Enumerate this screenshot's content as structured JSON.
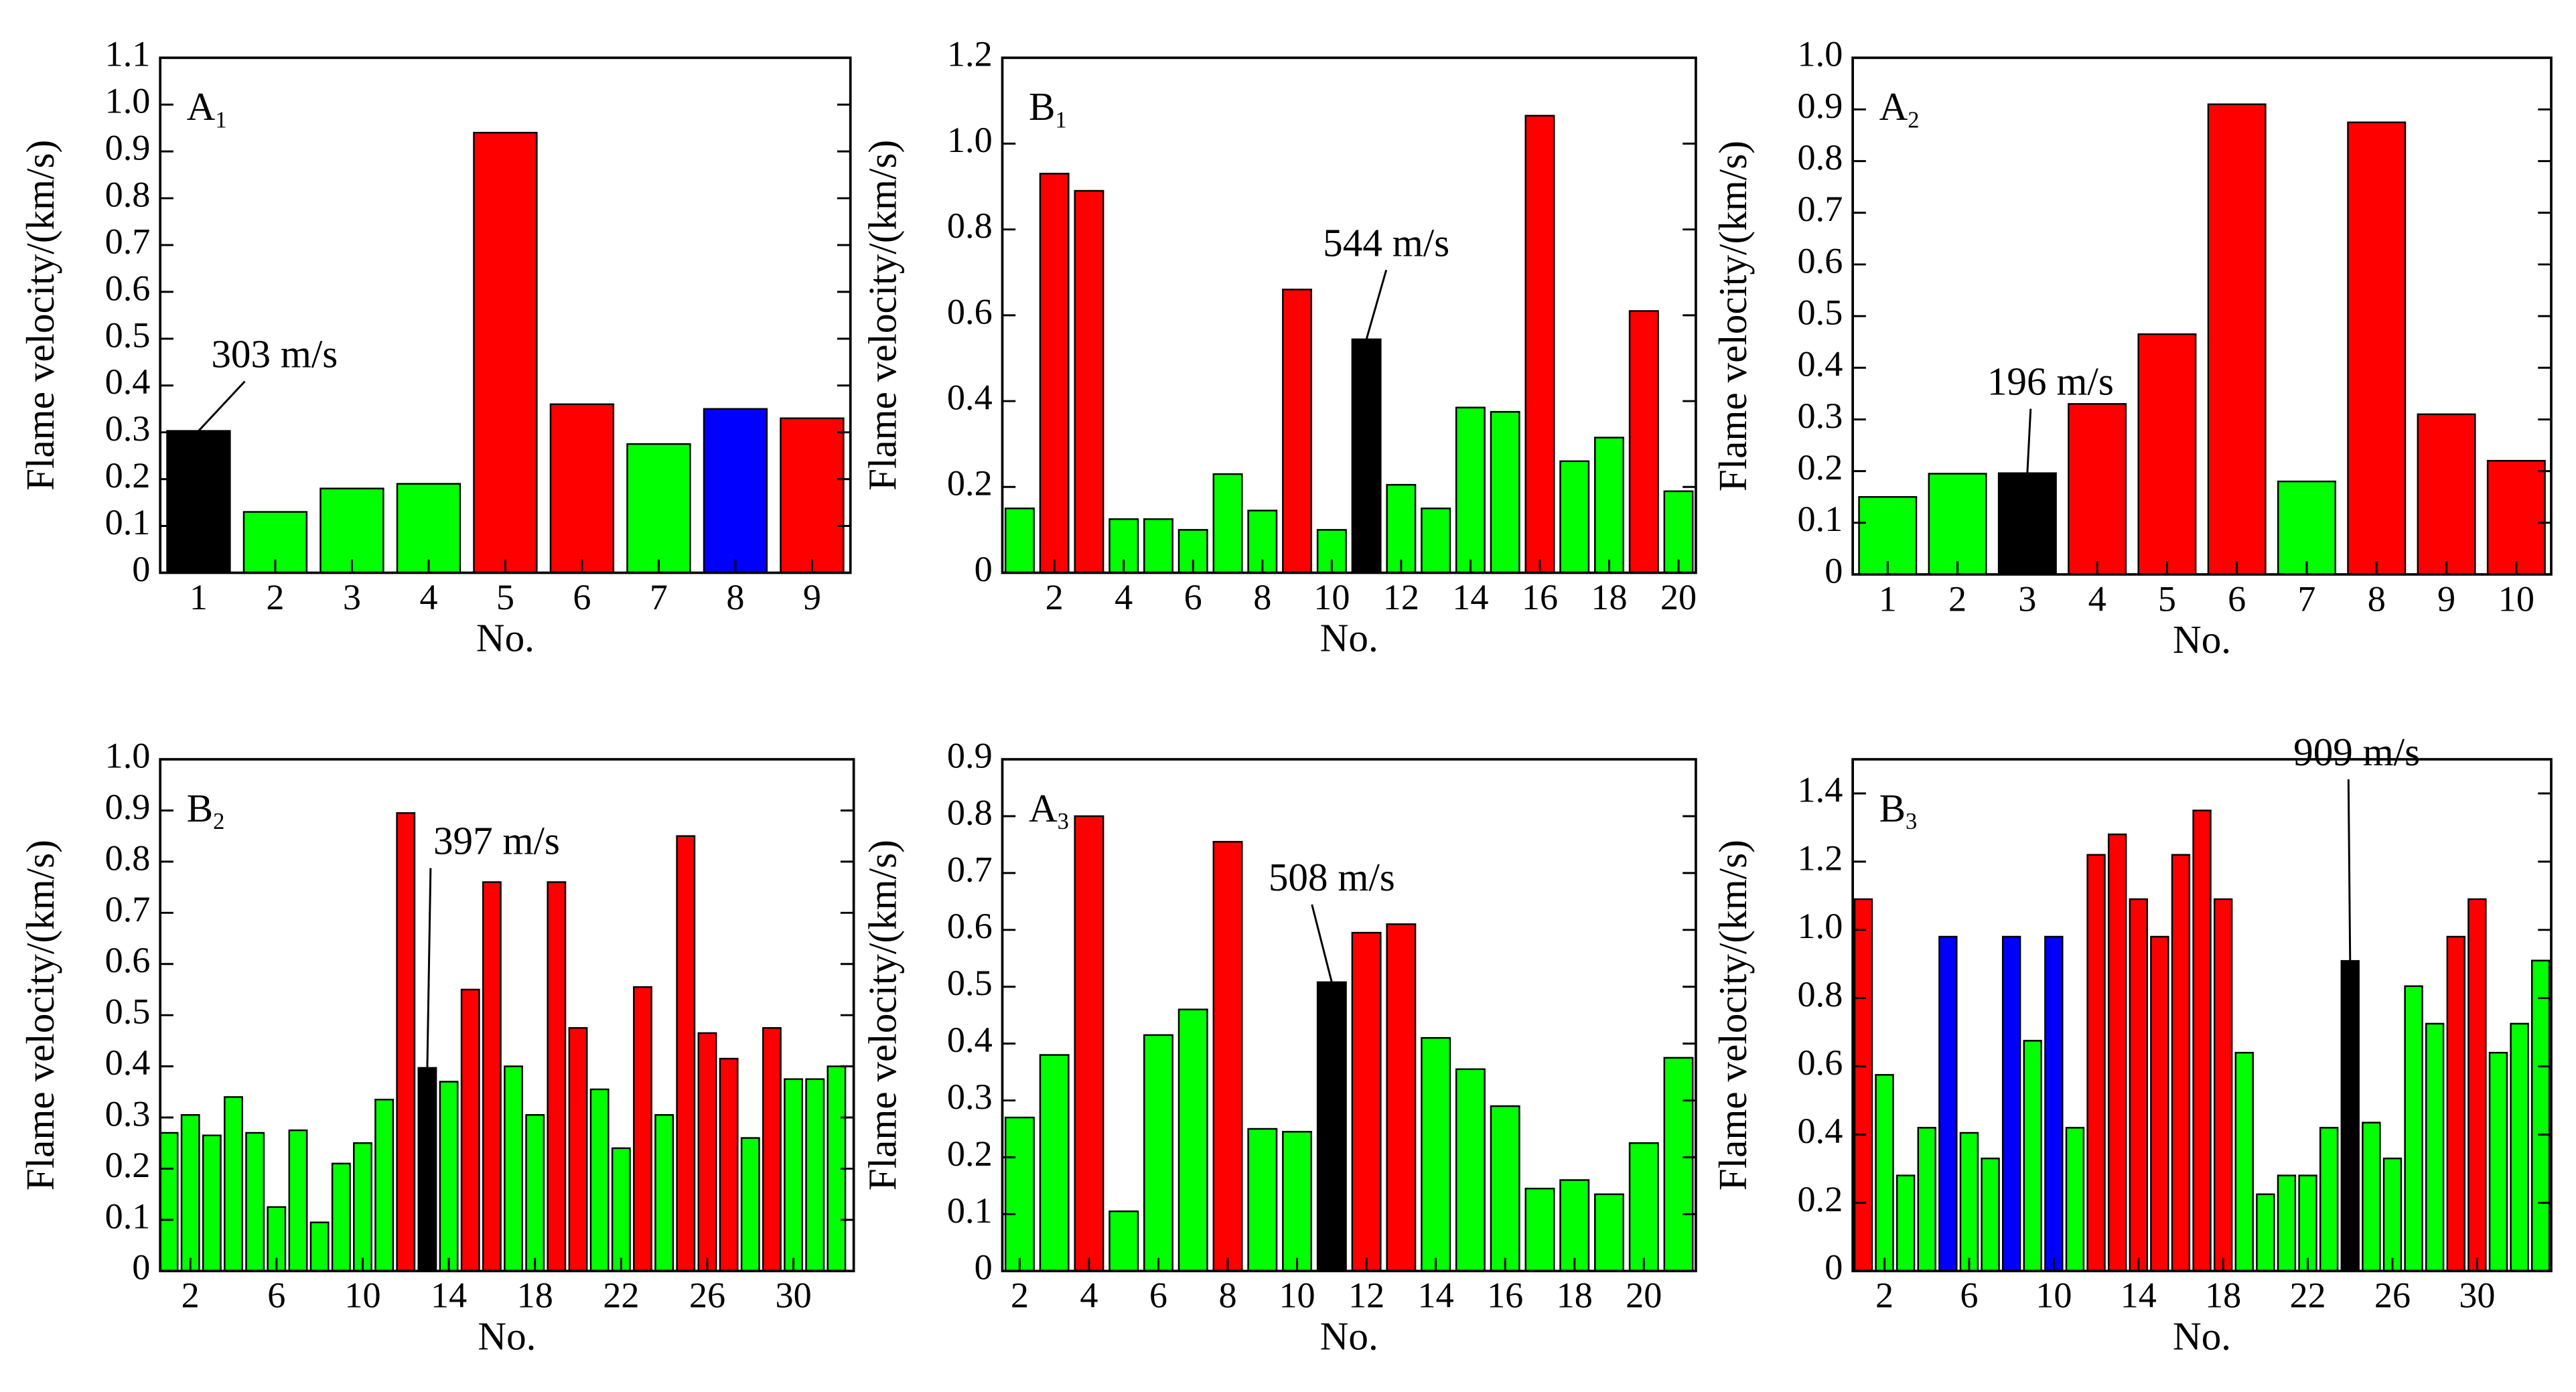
{
  "chart_data": [
    {
      "type": "bar",
      "label": "A",
      "label_sub": "1",
      "xlabel": "No.",
      "ylabel": "Flame velocity/(km/s)",
      "annotation": "303 m/s",
      "x": [
        1,
        2,
        3,
        4,
        5,
        6,
        7,
        8,
        9
      ],
      "values": [
        0.303,
        0.13,
        0.18,
        0.19,
        0.94,
        0.36,
        0.275,
        0.35,
        0.33
      ],
      "colors": [
        "#000000",
        "#00ff00",
        "#00ff00",
        "#00ff00",
        "#ff0000",
        "#ff0000",
        "#00ff00",
        "#0000ff",
        "#ff0000"
      ],
      "xlim": [
        0.5,
        9.5
      ],
      "xticks": [
        1,
        2,
        3,
        4,
        5,
        6,
        7,
        8,
        9
      ],
      "ylim": [
        0,
        1.1
      ],
      "yticks": [
        0,
        0.1,
        0.2,
        0.3,
        0.4,
        0.5,
        0.6,
        0.7,
        0.8,
        0.9,
        {
          "value": 1,
          "label": "1.0"
        },
        1.1
      ]
    },
    {
      "type": "bar",
      "label": "B",
      "label_sub": "1",
      "xlabel": "No.",
      "ylabel": "Flame velocity/(km/s)",
      "annotation": "544 m/s",
      "x": [
        1,
        2,
        3,
        4,
        5,
        6,
        7,
        8,
        9,
        10,
        11,
        12,
        13,
        14,
        15,
        16,
        17,
        18,
        19,
        20
      ],
      "values": [
        0.15,
        0.93,
        0.89,
        0.125,
        0.125,
        0.1,
        0.23,
        0.145,
        0.66,
        0.1,
        0.544,
        0.205,
        0.15,
        0.385,
        0.375,
        1.065,
        0.26,
        0.315,
        0.61,
        0.19
      ],
      "colors": [
        "#00ff00",
        "#ff0000",
        "#ff0000",
        "#00ff00",
        "#00ff00",
        "#00ff00",
        "#00ff00",
        "#00ff00",
        "#ff0000",
        "#00ff00",
        "#000000",
        "#00ff00",
        "#00ff00",
        "#00ff00",
        "#00ff00",
        "#ff0000",
        "#00ff00",
        "#00ff00",
        "#ff0000",
        "#00ff00"
      ],
      "xlim": [
        0.5,
        20.5
      ],
      "xticks": [
        2,
        4,
        6,
        8,
        10,
        12,
        14,
        16,
        18,
        20
      ],
      "ylim": [
        0,
        1.2
      ],
      "yticks": [
        0,
        0.2,
        0.4,
        0.6,
        0.8,
        {
          "value": 1,
          "label": "1.0"
        },
        1.2
      ]
    },
    {
      "type": "bar",
      "label": "A",
      "label_sub": "2",
      "xlabel": "No.",
      "ylabel": "Flame velocity/(km/s)",
      "annotation": "196 m/s",
      "x": [
        1,
        2,
        3,
        4,
        5,
        6,
        7,
        8,
        9,
        10
      ],
      "values": [
        0.15,
        0.195,
        0.196,
        0.33,
        0.465,
        0.91,
        0.18,
        0.875,
        0.31,
        0.22
      ],
      "colors": [
        "#00ff00",
        "#00ff00",
        "#000000",
        "#ff0000",
        "#ff0000",
        "#ff0000",
        "#00ff00",
        "#ff0000",
        "#ff0000",
        "#ff0000"
      ],
      "xlim": [
        0.5,
        10.5
      ],
      "xticks": [
        1,
        2,
        3,
        4,
        5,
        6,
        7,
        8,
        9,
        10
      ],
      "ylim": [
        0,
        1
      ],
      "yticks": [
        0,
        0.1,
        0.2,
        0.3,
        0.4,
        0.5,
        0.6,
        0.7,
        0.8,
        0.9,
        {
          "value": 1,
          "label": "1.0"
        }
      ]
    },
    {
      "type": "bar",
      "label": "B",
      "label_sub": "2",
      "xlabel": "No.",
      "ylabel": "Flame velocity/(km/s)",
      "annotation": "397 m/s",
      "x": [
        1,
        2,
        3,
        4,
        5,
        6,
        7,
        8,
        9,
        10,
        11,
        12,
        13,
        14,
        15,
        16,
        17,
        18,
        19,
        20,
        21,
        22,
        23,
        24,
        25,
        26,
        27,
        28,
        29,
        30,
        31,
        32
      ],
      "values": [
        0.27,
        0.305,
        0.265,
        0.34,
        0.27,
        0.125,
        0.275,
        0.095,
        0.21,
        0.25,
        0.335,
        0.895,
        0.397,
        0.37,
        0.55,
        0.76,
        0.4,
        0.305,
        0.76,
        0.475,
        0.355,
        0.24,
        0.555,
        0.305,
        0.85,
        0.465,
        0.415,
        0.26,
        0.475,
        0.375,
        0.375,
        0.4
      ],
      "colors": [
        "#00ff00",
        "#00ff00",
        "#00ff00",
        "#00ff00",
        "#00ff00",
        "#00ff00",
        "#00ff00",
        "#00ff00",
        "#00ff00",
        "#00ff00",
        "#00ff00",
        "#ff0000",
        "#000000",
        "#00ff00",
        "#ff0000",
        "#ff0000",
        "#00ff00",
        "#00ff00",
        "#ff0000",
        "#ff0000",
        "#00ff00",
        "#00ff00",
        "#ff0000",
        "#00ff00",
        "#ff0000",
        "#ff0000",
        "#ff0000",
        "#00ff00",
        "#ff0000",
        "#00ff00",
        "#00ff00",
        "#00ff00"
      ],
      "xlim": [
        0.6,
        32.8
      ],
      "xticks": [
        2,
        6,
        10,
        14,
        18,
        22,
        26,
        30
      ],
      "ylim": [
        0,
        1
      ],
      "yticks": [
        0,
        0.1,
        0.2,
        0.3,
        0.4,
        0.5,
        0.6,
        0.7,
        0.8,
        0.9,
        {
          "value": 1,
          "label": "1.0"
        }
      ]
    },
    {
      "type": "bar",
      "label": "A",
      "label_sub": "3",
      "xlabel": "No.",
      "ylabel": "Flame velocity/(km/s)",
      "annotation": "508 m/s",
      "x": [
        2,
        3,
        4,
        5,
        6,
        7,
        8,
        9,
        10,
        11,
        12,
        13,
        14,
        15,
        16,
        17,
        18,
        19,
        20,
        21
      ],
      "values": [
        0.27,
        0.38,
        0.8,
        0.105,
        0.415,
        0.46,
        0.755,
        0.25,
        0.245,
        0.508,
        0.595,
        0.61,
        0.41,
        0.355,
        0.29,
        0.145,
        0.16,
        0.135,
        0.225,
        0.375
      ],
      "colors": [
        "#00ff00",
        "#00ff00",
        "#ff0000",
        "#00ff00",
        "#00ff00",
        "#00ff00",
        "#ff0000",
        "#00ff00",
        "#00ff00",
        "#000000",
        "#ff0000",
        "#ff0000",
        "#00ff00",
        "#00ff00",
        "#00ff00",
        "#00ff00",
        "#00ff00",
        "#00ff00",
        "#00ff00",
        "#00ff00"
      ],
      "xlim": [
        1.5,
        21.5
      ],
      "xticks": [
        2,
        4,
        6,
        8,
        10,
        12,
        14,
        16,
        18,
        20
      ],
      "ylim": [
        0,
        0.9
      ],
      "yticks": [
        0,
        0.1,
        0.2,
        0.3,
        0.4,
        0.5,
        0.6,
        0.7,
        0.8,
        0.9
      ]
    },
    {
      "type": "bar",
      "label": "B",
      "label_sub": "3",
      "xlabel": "No.",
      "ylabel": "Flame velocity/(km/s)",
      "annotation": "909 m/s",
      "x": [
        1,
        2,
        3,
        4,
        5,
        6,
        7,
        8,
        9,
        10,
        11,
        12,
        13,
        14,
        15,
        16,
        17,
        18,
        19,
        20,
        21,
        22,
        23,
        24,
        25,
        26,
        27,
        28,
        29,
        30,
        31,
        32,
        33
      ],
      "values": [
        1.09,
        0.575,
        0.28,
        0.42,
        0.98,
        0.405,
        0.33,
        0.98,
        0.675,
        0.98,
        0.42,
        1.22,
        1.28,
        1.09,
        0.98,
        1.22,
        1.35,
        1.09,
        0.64,
        0.225,
        0.28,
        0.28,
        0.42,
        0.909,
        0.435,
        0.33,
        0.835,
        0.725,
        0.98,
        1.09,
        0.64,
        0.725,
        0.91
      ],
      "colors": [
        "#ff0000",
        "#00ff00",
        "#00ff00",
        "#00ff00",
        "#0000ff",
        "#00ff00",
        "#00ff00",
        "#0000ff",
        "#00ff00",
        "#0000ff",
        "#00ff00",
        "#ff0000",
        "#ff0000",
        "#ff0000",
        "#ff0000",
        "#ff0000",
        "#ff0000",
        "#ff0000",
        "#00ff00",
        "#00ff00",
        "#00ff00",
        "#00ff00",
        "#00ff00",
        "#000000",
        "#00ff00",
        "#00ff00",
        "#00ff00",
        "#00ff00",
        "#ff0000",
        "#ff0000",
        "#00ff00",
        "#00ff00",
        "#00ff00"
      ],
      "xlim": [
        0.5,
        33.5
      ],
      "xticks": [
        2,
        6,
        10,
        14,
        18,
        22,
        26,
        30
      ],
      "ylim": [
        0,
        1.5
      ],
      "yticks": [
        0,
        0.2,
        0.4,
        0.6,
        0.8,
        {
          "value": 1,
          "label": "1.0"
        },
        1.2,
        1.4
      ]
    }
  ]
}
